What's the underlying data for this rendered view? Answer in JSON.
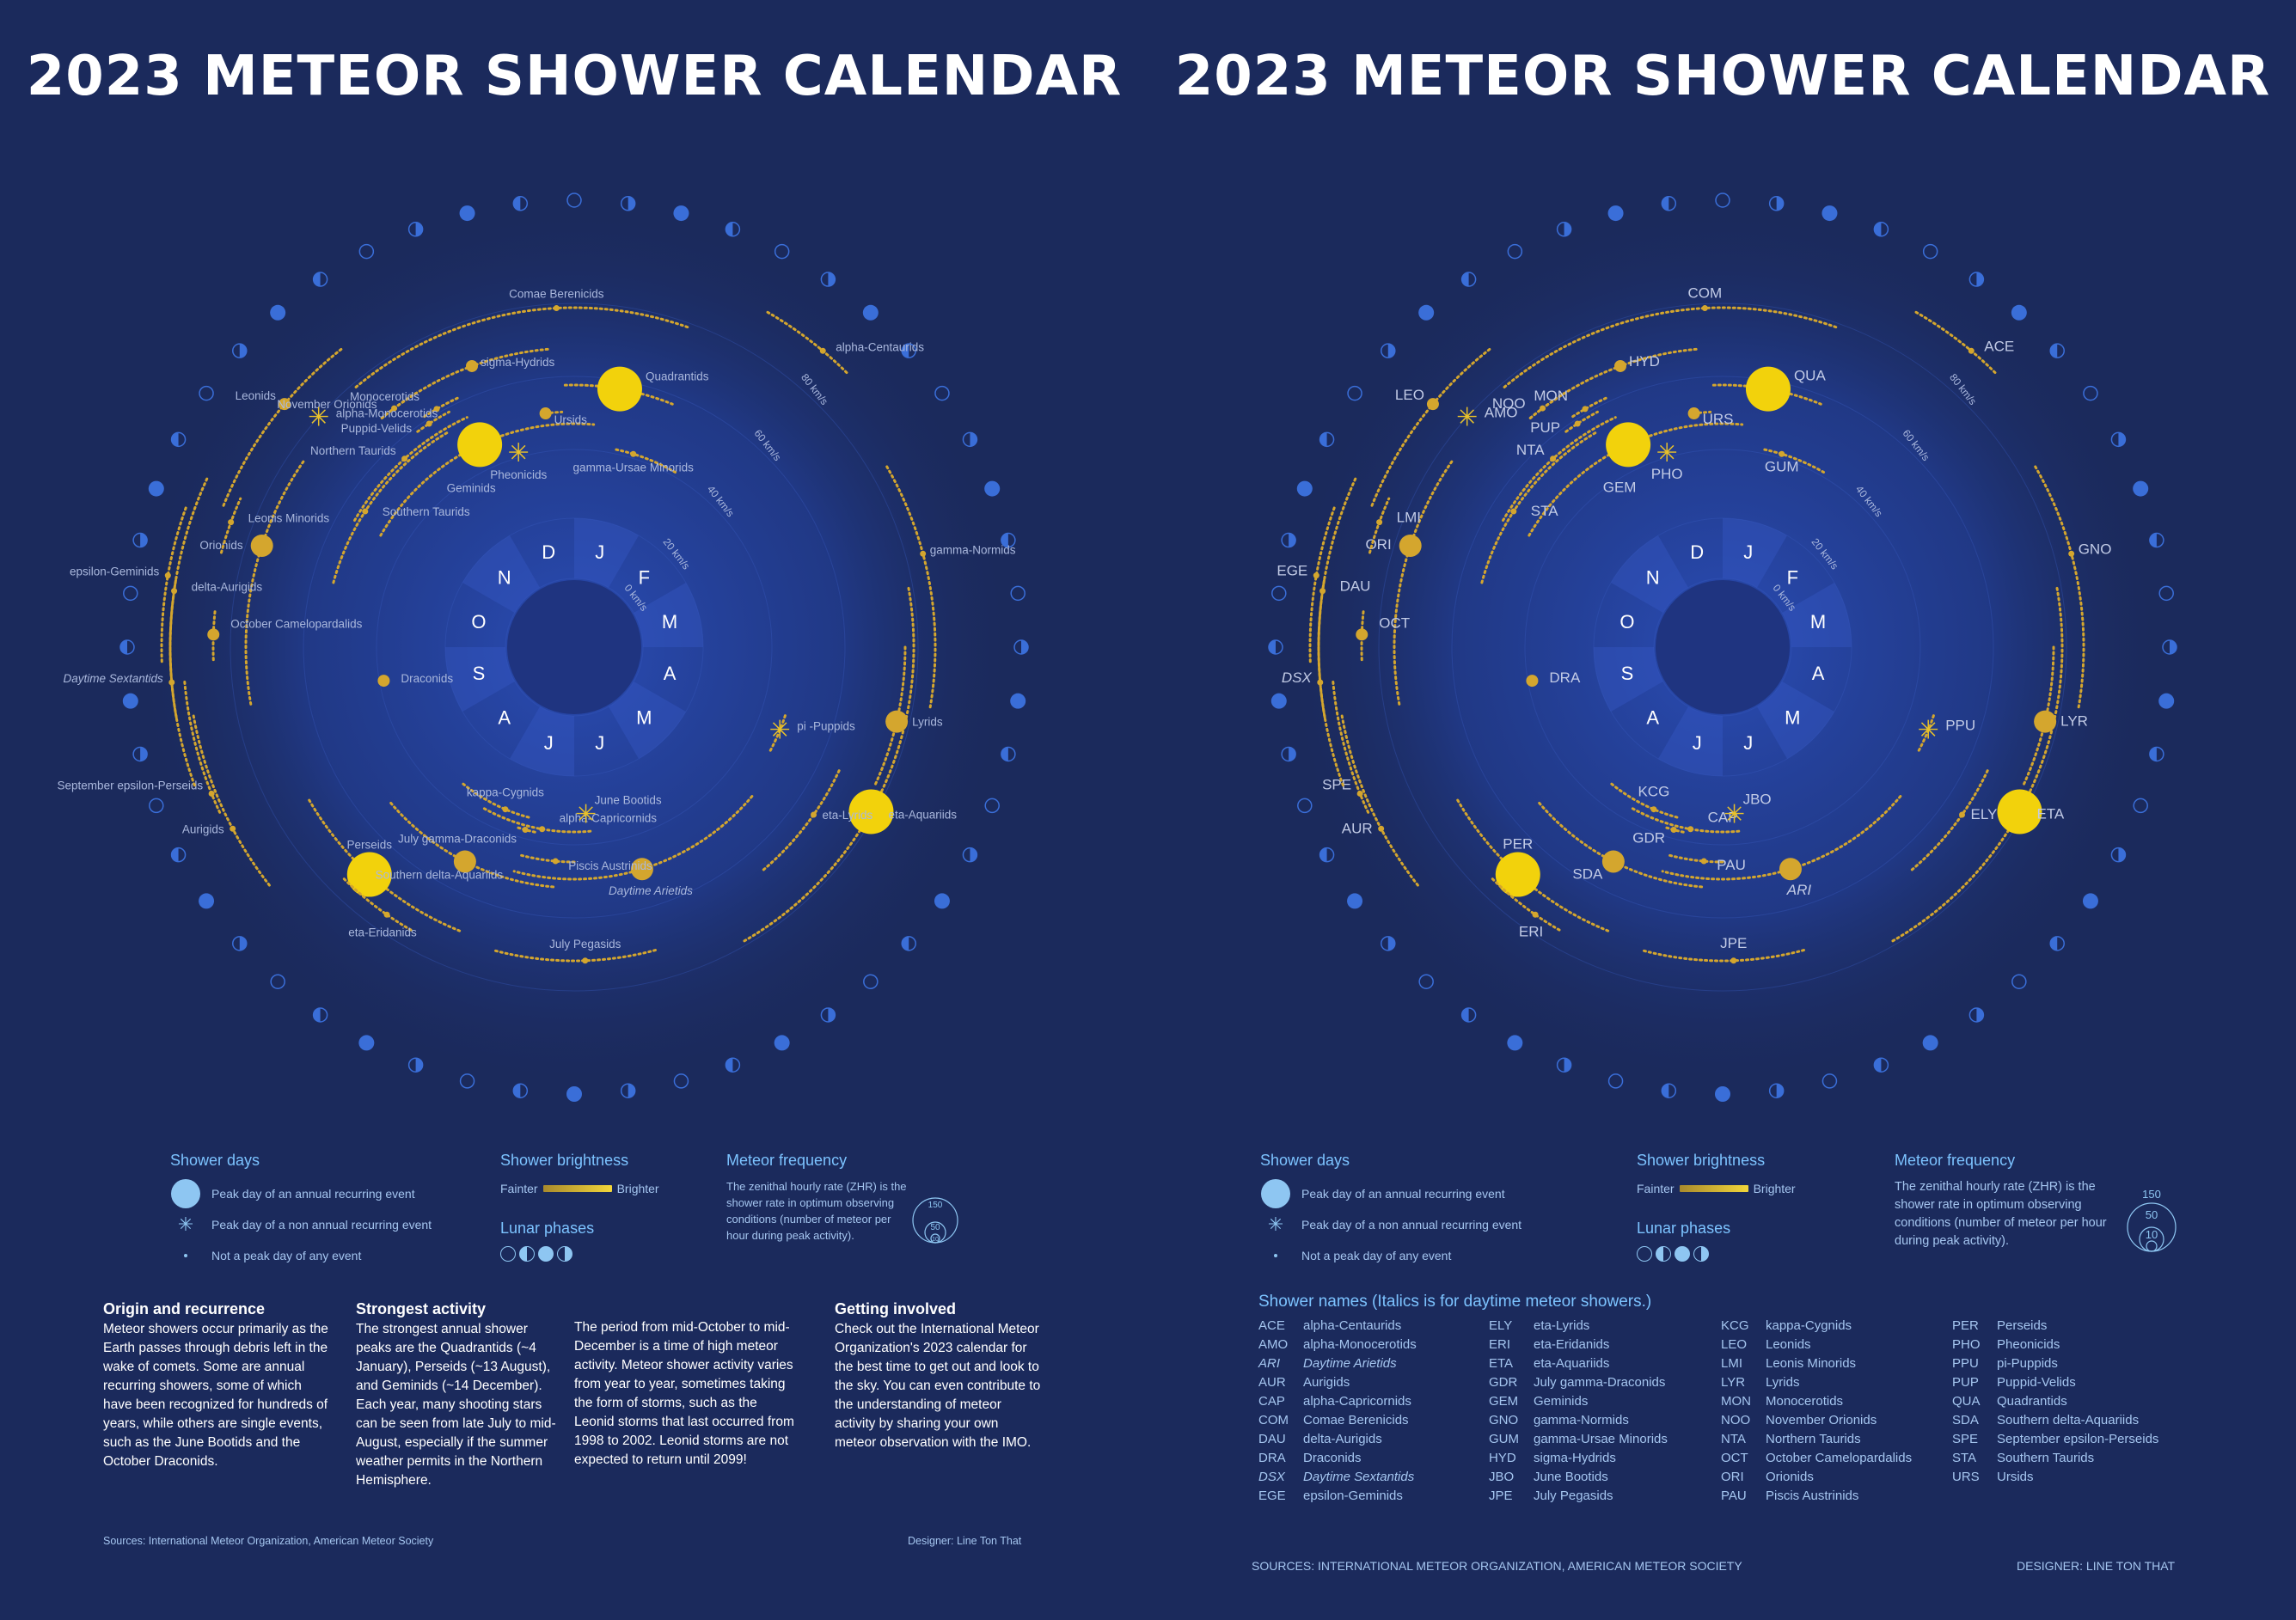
{
  "title": "2023 METEOR SHOWER CALENDAR",
  "months": [
    "J",
    "F",
    "M",
    "A",
    "M",
    "J",
    "J",
    "A",
    "S",
    "O",
    "N",
    "D"
  ],
  "speeds": [
    "0 km/s",
    "20 km/s",
    "40 km/s",
    "60 km/s",
    "80 km/s"
  ],
  "colors": {
    "background": "#1b2a5c",
    "gold": "#d4a62e",
    "yellow": "#f2d20c",
    "moon": "#3a6ed8",
    "legend_accent": "#7cc3ff"
  },
  "showers": [
    {
      "code": "QUA",
      "name": "Quadrantids",
      "peak": "big"
    },
    {
      "code": "GEM",
      "name": "Geminids",
      "peak": "big"
    },
    {
      "code": "PER",
      "name": "Perseids",
      "peak": "big"
    },
    {
      "code": "ETA",
      "name": "eta-Aquariids",
      "peak": "big"
    },
    {
      "code": "LYR",
      "name": "Lyrids",
      "peak": "medium"
    },
    {
      "code": "ORI",
      "name": "Orionids",
      "peak": "medium"
    },
    {
      "code": "SDA",
      "name": "Southern delta-Aquariids",
      "peak": "medium"
    },
    {
      "code": "ARI",
      "name": "Daytime Arietids",
      "peak": "medium",
      "daytime": true
    },
    {
      "code": "LEO",
      "name": "Leonids",
      "peak": "small"
    },
    {
      "code": "URS",
      "name": "Ursids",
      "peak": "small"
    },
    {
      "code": "HYD",
      "name": "sigma-Hydrids",
      "peak": "small"
    },
    {
      "code": "COM",
      "name": "Comae Berenicids",
      "peak": "tiny"
    },
    {
      "code": "ACE",
      "name": "alpha-Centaurids",
      "peak": "tiny"
    },
    {
      "code": "GUM",
      "name": "gamma-Ursae Minorids",
      "peak": "tiny"
    },
    {
      "code": "GNO",
      "name": "gamma-Normids",
      "peak": "tiny"
    },
    {
      "code": "ELY",
      "name": "eta-Lyrids",
      "peak": "tiny"
    },
    {
      "code": "JPE",
      "name": "July Pegasids",
      "peak": "tiny"
    },
    {
      "code": "ERI",
      "name": "eta-Eridanids",
      "peak": "tiny"
    },
    {
      "code": "AUR",
      "name": "Aurigids",
      "peak": "tiny"
    },
    {
      "code": "SPE",
      "name": "September epsilon-Perseids",
      "peak": "tiny"
    },
    {
      "code": "DSX",
      "name": "Daytime Sextantids",
      "peak": "tiny",
      "daytime": true
    },
    {
      "code": "OCT",
      "name": "October Camelopardalids",
      "peak": "small"
    },
    {
      "code": "DAU",
      "name": "delta-Aurigids",
      "peak": "tiny"
    },
    {
      "code": "EGE",
      "name": "epsilon-Geminids",
      "peak": "tiny"
    },
    {
      "code": "LMI",
      "name": "Leonis Minorids",
      "peak": "tiny"
    },
    {
      "code": "NOO",
      "name": "November Orionids",
      "peak": "tiny"
    },
    {
      "code": "MON",
      "name": "Monocerotids",
      "peak": "tiny"
    },
    {
      "code": "PUP",
      "name": "Puppid-Velids",
      "peak": "tiny"
    },
    {
      "code": "AMO",
      "name": "alpha-Monocerotids",
      "peak": "star"
    },
    {
      "code": "PHO",
      "name": "Pheonicids",
      "peak": "star"
    },
    {
      "code": "NTA",
      "name": "Northern Taurids",
      "peak": "tiny"
    },
    {
      "code": "STA",
      "name": "Southern Taurids",
      "peak": "tiny"
    },
    {
      "code": "DRA",
      "name": "Draconids",
      "peak": "small"
    },
    {
      "code": "PPU",
      "name": "pi -Puppids",
      "peak": "star"
    },
    {
      "code": "KCG",
      "name": "kappa-Cygnids",
      "peak": "tiny"
    },
    {
      "code": "CAP",
      "name": "alpha-Capricornids",
      "peak": "tiny"
    },
    {
      "code": "GDR",
      "name": "July gamma-Draconids",
      "peak": "tiny"
    },
    {
      "code": "PAU",
      "name": "Piscis Austrinids",
      "peak": "tiny"
    },
    {
      "code": "JBO",
      "name": "June Bootids",
      "peak": "star"
    }
  ],
  "legend": {
    "shower_days_head": "Shower days",
    "peak_annual": "Peak day of an annual recurring event",
    "peak_non_annual": "Peak day of a non annual recurring event",
    "not_peak": "Not  a peak day of any event",
    "brightness_head": "Shower brightness",
    "fainter": "Fainter",
    "brighter": "Brighter",
    "lunar_head": "Lunar phases",
    "frequency_head": "Meteor frequency",
    "frequency_text": "The zenithal hourly rate (ZHR) is the shower rate in optimum observing conditions (number of meteor per hour during peak activity).",
    "freq_values": [
      "150",
      "50",
      "10"
    ]
  },
  "left_text": {
    "origin_head": "Origin and recurrence",
    "origin_body": "Meteor showers occur primarily as the Earth passes through debris left in the wake of comets. Some are annual recurring showers, some of which have been recognized for hundreds of years, while others are single events, such as the June Bootids and the October Draconids.",
    "strong_head": "Strongest activity",
    "strong_body": "The strongest annual shower peaks are the Quadrantids (~4 January), Perseids (~13 August), and Geminids (~14 December). Each year, many shooting stars can be seen from late July to mid-August, especially if the summer weather permits in the Northern Hemisphere.",
    "period_body": "The period from mid-October to mid-December is a time of high meteor activity. Meteor shower activity varies from year to year, sometimes taking the form of storms, such as the Leonid storms that last occurred from 1998 to 2002. Leonid storms are not expected to return until 2099!",
    "involved_head": "Getting involved",
    "involved_body": "Check out the International Meteor Organization's 2023 calendar for the best time to get out and look to the sky. You can even contribute to the understanding of meteor activity by sharing your own meteor observation with the IMO.",
    "sources": "Sources: International Meteor Organization, American Meteor Society",
    "designer": "Designer: Line Ton That"
  },
  "right_text": {
    "names_head": "Shower names (Italics is for daytime meteor showers.)",
    "sources": "SOURCES: INTERNATIONAL METEOR ORGANIZATION, AMERICAN METEOR SOCIETY",
    "designer": "DESIGNER: LINE TON THAT"
  },
  "code_columns": [
    [
      [
        "ACE",
        "alpha-Centaurids"
      ],
      [
        "AMO",
        "alpha-Monocerotids"
      ],
      [
        "ARI",
        "Daytime Arietids",
        "it"
      ],
      [
        "AUR",
        "Aurigids"
      ],
      [
        "CAP",
        "alpha-Capricornids"
      ],
      [
        "COM",
        "Comae Berenicids"
      ],
      [
        "DAU",
        "delta-Aurigids"
      ],
      [
        "DRA",
        "Draconids"
      ],
      [
        "DSX",
        "Daytime Sextantids",
        "it"
      ],
      [
        "EGE",
        "epsilon-Geminids"
      ]
    ],
    [
      [
        "ELY",
        "eta-Lyrids"
      ],
      [
        "ERI",
        "eta-Eridanids"
      ],
      [
        "ETA",
        "eta-Aquariids"
      ],
      [
        "GDR",
        "July gamma-Draconids"
      ],
      [
        "GEM",
        "Geminids"
      ],
      [
        "GNO",
        "gamma-Normids"
      ],
      [
        "GUM",
        "gamma-Ursae Minorids"
      ],
      [
        "HYD",
        "sigma-Hydrids"
      ],
      [
        "JBO",
        "June Bootids"
      ],
      [
        "JPE",
        "July Pegasids"
      ]
    ],
    [
      [
        "KCG",
        "kappa-Cygnids"
      ],
      [
        "LEO",
        "Leonids"
      ],
      [
        "LMI",
        "Leonis Minorids"
      ],
      [
        "LYR",
        "Lyrids"
      ],
      [
        "MON",
        "Monocerotids"
      ],
      [
        "NOO",
        "November Orionids"
      ],
      [
        "NTA",
        "Northern Taurids"
      ],
      [
        "OCT",
        "October Camelopardalids"
      ],
      [
        "ORI",
        "Orionids"
      ],
      [
        "PAU",
        "Piscis Austrinids"
      ]
    ],
    [
      [
        "PER",
        "Perseids"
      ],
      [
        "PHO",
        "Pheonicids"
      ],
      [
        "PPU",
        "pi-Puppids"
      ],
      [
        "PUP",
        "Puppid-Velids"
      ],
      [
        "QUA",
        "Quadrantids"
      ],
      [
        "SDA",
        "Southern delta-Aquariids"
      ],
      [
        "SPE",
        "September epsilon-Perseids"
      ],
      [
        "STA",
        "Southern Taurids"
      ],
      [
        "URS",
        "Ursids"
      ]
    ]
  ]
}
